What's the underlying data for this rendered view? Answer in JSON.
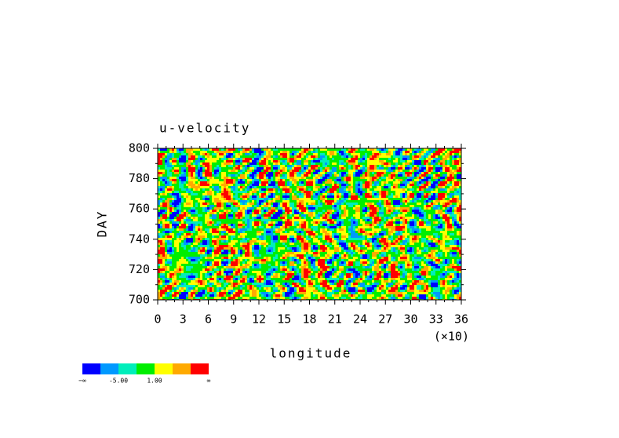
{
  "chart_data": {
    "type": "contour",
    "title": "u-velocity",
    "x_label": "longitude",
    "x_multiplier": "(×10)",
    "y_label": "DAY",
    "xlim": [
      0,
      36
    ],
    "xticks": [
      0,
      3,
      6,
      9,
      12,
      15,
      18,
      21,
      24,
      27,
      30,
      33,
      36
    ],
    "ylim": [
      700,
      800
    ],
    "yticks": [
      700,
      720,
      740,
      760,
      780,
      800
    ],
    "colorbar": {
      "colors": [
        "#0000ff",
        "#0099ff",
        "#00eebb",
        "#00ee00",
        "#ffff00",
        "#ffaa00",
        "#ff0000"
      ],
      "labels": [
        "−∞",
        "-5.00",
        "1.00",
        "∞"
      ]
    }
  }
}
